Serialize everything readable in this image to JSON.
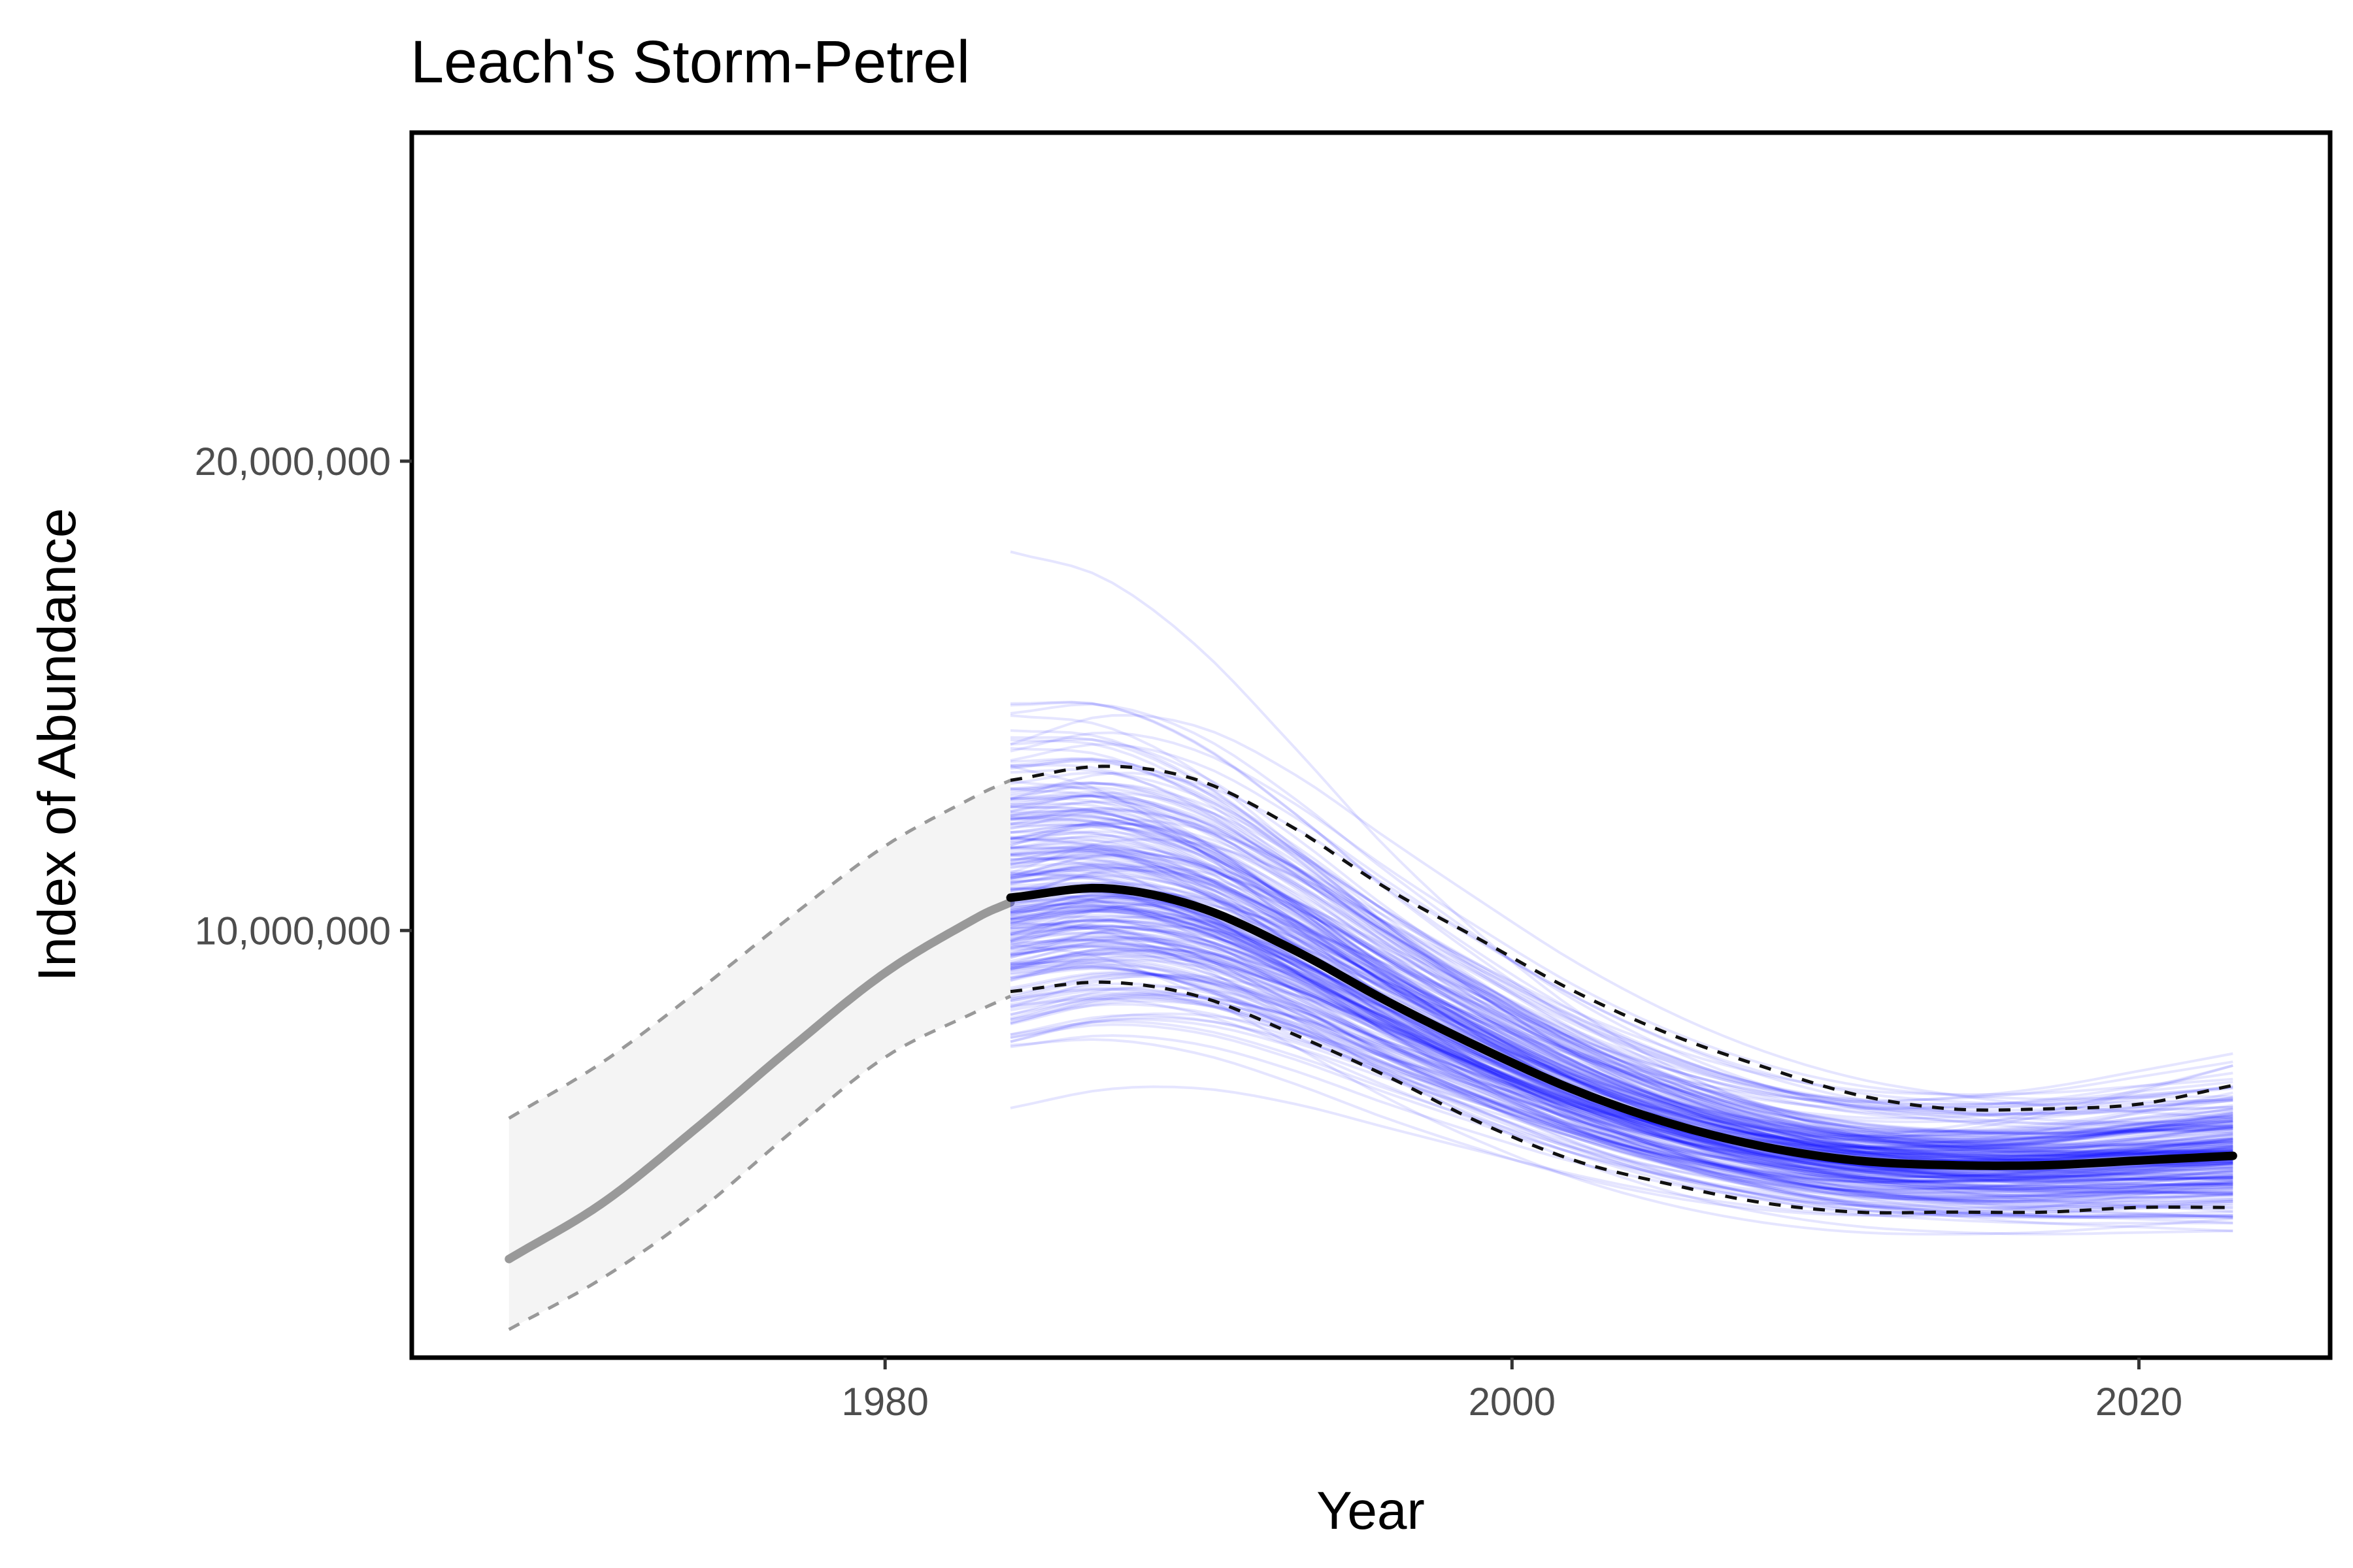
{
  "chart_data": {
    "type": "line",
    "title": "Leach's Storm-Petrel",
    "xlabel": "Year",
    "ylabel": "Index of Abundance",
    "xlim": [
      1964.9,
      2026.1
    ],
    "ylim": [
      900000,
      27000000
    ],
    "xticks": [
      1980,
      2000,
      2020
    ],
    "xtick_labels": [
      "1980",
      "2000",
      "2020"
    ],
    "yticks": [
      10000000,
      20000000
    ],
    "ytick_labels": [
      "10,000,000",
      "20,000,000"
    ],
    "grid": false,
    "legend": "none",
    "colors": {
      "early_band_fill": "#f4f4f4",
      "early_line": "#999999",
      "posterior_draws": "#0000ff",
      "main_line": "#000000"
    },
    "series": [
      {
        "role": "early-period-index",
        "x": [
          1968,
          1971,
          1974,
          1977,
          1980,
          1983,
          1984
        ],
        "y": [
          3000000,
          4200000,
          5800000,
          7500000,
          9100000,
          10300000,
          10600000
        ],
        "lower": [
          1500000,
          2600000,
          4000000,
          5700000,
          7300000,
          8300000,
          8600000
        ],
        "upper": [
          6000000,
          7200000,
          8700000,
          10300000,
          11800000,
          12900000,
          13200000
        ]
      },
      {
        "role": "index",
        "x": [
          1984,
          1987,
          1990,
          1993,
          1996,
          1999,
          2002,
          2005,
          2008,
          2011,
          2014,
          2017,
          2020,
          2023
        ],
        "y": [
          10700000,
          10900000,
          10500000,
          9600000,
          8500000,
          7500000,
          6600000,
          5900000,
          5400000,
          5100000,
          5000000,
          5000000,
          5100000,
          5200000
        ],
        "lower": [
          8700000,
          8900000,
          8600000,
          7800000,
          6900000,
          5900000,
          5100000,
          4600000,
          4200000,
          4000000,
          4000000,
          4000000,
          4100000,
          4100000
        ],
        "upper": [
          13200000,
          13500000,
          13200000,
          12200000,
          10900000,
          9800000,
          8700000,
          7800000,
          7100000,
          6500000,
          6200000,
          6200000,
          6300000,
          6700000
        ]
      }
    ],
    "posterior_draws": {
      "count": 260,
      "x_start": 1984,
      "x_end": 2023,
      "early_spread": 0.16,
      "late_spread": 0.14,
      "opacity": 0.1
    }
  }
}
